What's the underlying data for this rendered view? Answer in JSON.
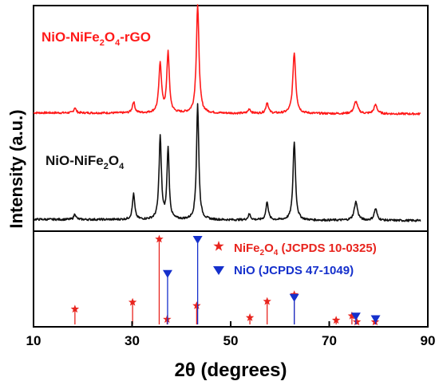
{
  "chart_data": {
    "type": "line",
    "xlabel": "2θ (degrees)",
    "ylabel": "Intensity (a.u.)",
    "xlim": [
      10,
      90
    ],
    "x_ticks": [
      "10",
      "30",
      "50",
      "70",
      "90"
    ],
    "grid": false,
    "colors": {
      "rgo": "#ff1a1a",
      "ferrite": "#111111",
      "nife_ref": "#e8241e",
      "nio_ref": "#1530cc"
    },
    "series": [
      {
        "name": "NiO-NiFe2O4-rGO",
        "label_main": "NiO-NiFe",
        "label_sub1": "2",
        "label_mid": "O",
        "label_sub2": "4",
        "label_tail": "-rGO",
        "color": "#ff1a1a",
        "baseline": 0.04,
        "peaks": [
          {
            "x": 18.4,
            "h": 0.05,
            "w": 0.25
          },
          {
            "x": 30.3,
            "h": 0.1,
            "w": 0.3
          },
          {
            "x": 35.7,
            "h": 0.45,
            "w": 0.32
          },
          {
            "x": 37.3,
            "h": 0.55,
            "w": 0.3
          },
          {
            "x": 43.3,
            "h": 0.98,
            "w": 0.32
          },
          {
            "x": 53.8,
            "h": 0.04,
            "w": 0.3
          },
          {
            "x": 57.4,
            "h": 0.1,
            "w": 0.3
          },
          {
            "x": 62.9,
            "h": 0.55,
            "w": 0.35
          },
          {
            "x": 75.4,
            "h": 0.11,
            "w": 0.45
          },
          {
            "x": 79.4,
            "h": 0.08,
            "w": 0.4
          }
        ]
      },
      {
        "name": "NiO-NiFe2O4",
        "label_main": "NiO-NiFe",
        "label_sub1": "2",
        "label_mid": "O",
        "label_sub2": "4",
        "label_tail": "",
        "color": "#111111",
        "baseline": 0.04,
        "peaks": [
          {
            "x": 18.4,
            "h": 0.05,
            "w": 0.25
          },
          {
            "x": 30.3,
            "h": 0.22,
            "w": 0.28
          },
          {
            "x": 35.7,
            "h": 0.72,
            "w": 0.28
          },
          {
            "x": 37.3,
            "h": 0.62,
            "w": 0.26
          },
          {
            "x": 43.3,
            "h": 1.0,
            "w": 0.28
          },
          {
            "x": 53.8,
            "h": 0.05,
            "w": 0.3
          },
          {
            "x": 57.4,
            "h": 0.16,
            "w": 0.28
          },
          {
            "x": 62.9,
            "h": 0.68,
            "w": 0.3
          },
          {
            "x": 75.4,
            "h": 0.16,
            "w": 0.4
          },
          {
            "x": 79.4,
            "h": 0.1,
            "w": 0.35
          }
        ]
      }
    ],
    "reference": {
      "nife": {
        "legend_main": "NiFe",
        "legend_sub1": "2",
        "legend_mid": "O",
        "legend_sub2": "4",
        "legend_tail": " (JCPDS 10-0325)",
        "color": "#e8241e",
        "marker": "star",
        "x": [
          18.4,
          30.1,
          35.5,
          37.1,
          43.1,
          53.9,
          57.4,
          62.9,
          71.4,
          74.6,
          75.6,
          79.3
        ],
        "y": [
          0.18,
          0.26,
          1.0,
          0.06,
          0.22,
          0.08,
          0.27,
          0.35,
          0.05,
          0.1,
          0.03,
          0.03
        ]
      },
      "nio": {
        "legend": "NiO (JCPDS 47-1049)",
        "color": "#1530cc",
        "marker": "triangle-down",
        "x": [
          37.2,
          43.3,
          62.9,
          75.4,
          79.4
        ],
        "y": [
          0.6,
          1.0,
          0.32,
          0.1,
          0.07
        ]
      }
    }
  }
}
